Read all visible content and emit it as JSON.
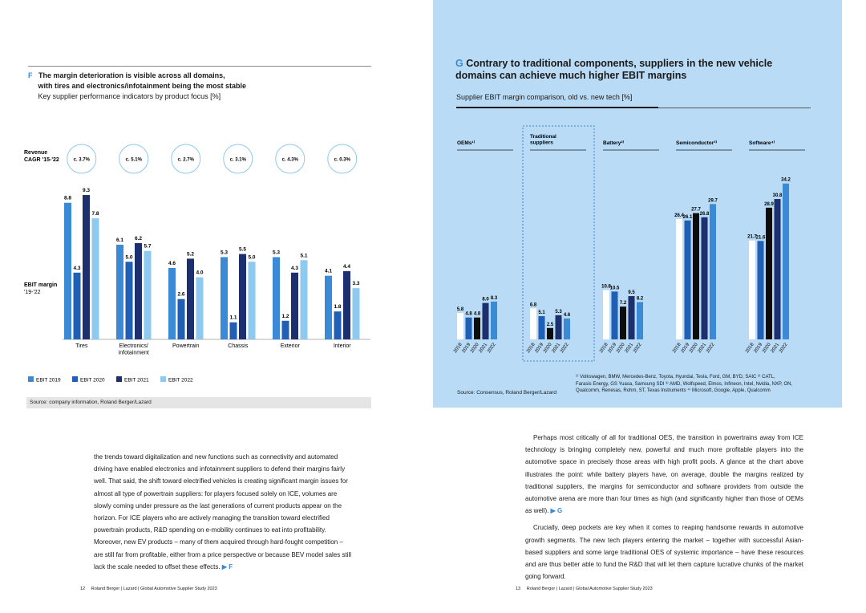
{
  "fig_f": {
    "letter": "F",
    "title_line1": "The margin deterioration is visible across all domains,",
    "title_line2": "with tires and electronics/infotainment being the most stable",
    "subtitle": "Key supplier performance indicators by product focus [%]",
    "source": "Source: company information, Roland Berger/Lazard"
  },
  "fig_g": {
    "letter": "G",
    "title_line1": "Contrary to traditional components, suppliers in the new vehicle",
    "title_line2": "domains can achieve much higher EBIT margins",
    "subtitle": "Supplier EBIT margin comparison, old vs. new tech [%]",
    "source": "Source: Consensus, Roland Berger/Lazard",
    "footnote_1": "¹⁾ Volkswagen, BMW, Mercedes-Benz, Toyota, Hyundai, Tesla, Ford, GM, BYD, SAIC  ²⁾ CATL,",
    "footnote_2": "Farasis Energy, GS Yuasa, Samsung SDI  ³⁾ AMD, Wolfspeed, Elmos, Infineon, Intel, Nvidia, NXP, ON,",
    "footnote_3": "Qualcomm, Renesas, Rohm, ST, Texas Instruments  ⁴⁾ Microsoft, Google, Apple, Qualcomm"
  },
  "left_text": {
    "l1": "the trends toward digitalization and new functions such as connectivity and automated",
    "l2": "driving have enabled electronics and infotainment suppliers to defend their margins fairly",
    "l3": "well. That said, the shift toward electrified vehicles is creating significant margin issues for",
    "l4": "almost all type of powertrain suppliers: for players focused solely on ICE, volumes are",
    "l5": "slowly coming under pressure as the last generations of current products appear on the",
    "l6": "horizon. For ICE players who are actively managing the transition toward electrified",
    "l7": "powertrain products, R&D spending on e-mobility continues to eat into profitability.",
    "l8": "Moreover, new EV products – many of them acquired through hard-fought competition –",
    "l9": "are still far from profitable, either from a price perspective or because BEV model sales still",
    "l10": "lack the scale needed to offset these effects.",
    "ref": "▶ F"
  },
  "right_text": {
    "p1": "Perhaps most critically of all for traditional OES, the transition in powertrains away from ICE technology is bringing completely new, powerful and much more profitable players into the automotive space in precisely those areas with high profit pools. A glance at the chart above illustrates the point: while battery players have, on average, double the margins realized by traditional suppliers, the margins for semiconductor and software providers from outside the automotive arena are more than four times as high (and significantly higher than those of OEMs as well).",
    "p1_ref": "▶ G",
    "p2": "Crucially, deep pockets are key when it comes to reaping handsome rewards in automotive growth segments. The new tech players entering the market – together with successful Asian-based suppliers and some large traditional OES of systemic importance – have these resources and are thus better able to fund the R&D that will let them capture lucrative chunks of the market going forward."
  },
  "footer": {
    "left_page": "12",
    "left_text": "Roland Berger | Lazard | Global Automotive Supplier Study 2023",
    "right_page": "13",
    "right_text": "Roland Berger | Lazard | Global Automotive Supplier Study 2023"
  },
  "chart_data": [
    {
      "type": "bar",
      "title": "The margin deterioration is visible across all domains, with tires and electronics/infotainment being the most stable",
      "subtitle": "Key supplier performance indicators by product focus [%]",
      "categories": [
        "Tires",
        "Electronics/ infotainment",
        "Powertrain",
        "Chassis",
        "Exterior",
        "Interior"
      ],
      "revenue_cagr_label": "Revenue CAGR '15-'22",
      "revenue_cagr": [
        "c. 3.7%",
        "c. 5.1%",
        "c. 2.7%",
        "c. 3.1%",
        "c. 4.3%",
        "c. 0.3%"
      ],
      "ebit_label": "EBIT margin '19-'22",
      "series": [
        {
          "name": "EBIT 2019",
          "color": "#3b8ad6",
          "values": [
            8.8,
            6.1,
            4.6,
            5.3,
            5.3,
            4.1
          ]
        },
        {
          "name": "EBIT 2020",
          "color": "#1f5fb5",
          "values": [
            4.3,
            5.0,
            2.6,
            1.1,
            1.2,
            1.8
          ]
        },
        {
          "name": "EBIT 2021",
          "color": "#1c2f6e",
          "values": [
            9.3,
            6.2,
            5.2,
            5.5,
            4.3,
            4.4
          ]
        },
        {
          "name": "EBIT 2022",
          "color": "#8ec9ef",
          "values": [
            7.8,
            5.7,
            4.0,
            5.0,
            5.1,
            3.3
          ]
        }
      ],
      "ylim": [
        0,
        10
      ],
      "legend_position": "bottom-left"
    },
    {
      "type": "bar",
      "title": "Contrary to traditional components, suppliers in the new vehicle domains can achieve much higher EBIT margins",
      "subtitle": "Supplier EBIT margin comparison, old vs. new tech [%]",
      "years": [
        "2018",
        "2019",
        "2020",
        "2021",
        "2022"
      ],
      "year_colors": [
        "#ffffff",
        "#1f5fb5",
        "#0d0d0d",
        "#1c2f6e",
        "#3b8ad6"
      ],
      "groups": [
        {
          "name": "OEMs¹⁾",
          "values": [
            5.8,
            4.8,
            4.8,
            8.0,
            8.3
          ]
        },
        {
          "name": "Traditional suppliers",
          "values": [
            6.8,
            5.1,
            2.5,
            5.3,
            4.6
          ]
        },
        {
          "name": "Battery²⁾",
          "values": [
            10.8,
            10.5,
            7.2,
            9.5,
            8.2
          ]
        },
        {
          "name": "Semiconductor³⁾",
          "values": [
            26.4,
            26.1,
            27.7,
            26.8,
            29.7
          ]
        },
        {
          "name": "Software⁴⁾",
          "values": [
            21.7,
            21.6,
            28.9,
            30.8,
            34.2
          ]
        }
      ],
      "ylim": [
        0,
        36
      ]
    }
  ]
}
